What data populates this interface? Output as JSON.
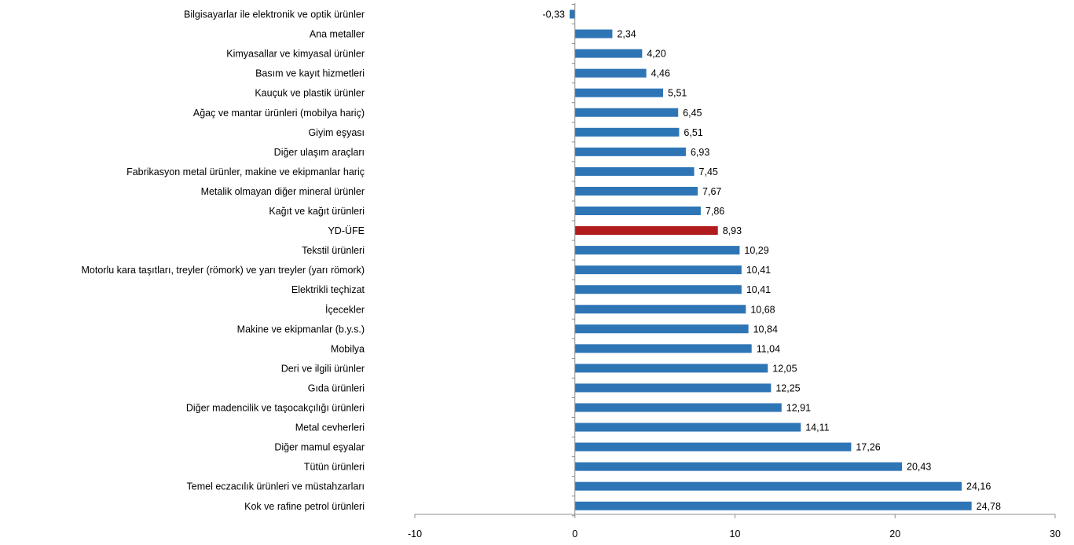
{
  "chart_data": {
    "type": "bar",
    "orientation": "horizontal",
    "title": "",
    "xlabel": "",
    "ylabel": "",
    "xlim": [
      -10,
      30
    ],
    "ticks": [
      -10,
      0,
      10,
      20,
      30
    ],
    "tick_labels": [
      "-10",
      "0",
      "10",
      "20",
      "30"
    ],
    "grid": false,
    "legend": "none",
    "colors": {
      "default": "#2e75b6",
      "highlight": "#b01c1c"
    },
    "categories": [
      "Bilgisayarlar ile elektronik ve optik ürünler",
      "Ana metaller",
      "Kimyasallar ve kimyasal ürünler",
      "Basım ve kayıt hizmetleri",
      "Kauçuk ve plastik ürünler",
      "Ağaç ve mantar ürünleri (mobilya hariç)",
      "Giyim eşyası",
      "Diğer ulaşım araçları",
      "Fabrikasyon metal ürünler, makine ve ekipmanlar hariç",
      "Metalik olmayan diğer mineral ürünler",
      "Kağıt ve kağıt ürünleri",
      "YD-ÜFE",
      "Tekstil ürünleri",
      "Motorlu kara taşıtları, treyler (römork) ve yarı treyler (yarı römork)",
      "Elektrikli teçhizat",
      "İçecekler",
      "Makine ve ekipmanlar (b.y.s.)",
      "Mobilya",
      "Deri ve ilgili ürünler",
      "Gıda ürünleri",
      "Diğer madencilik ve taşocakçılığı ürünleri",
      "Metal cevherleri",
      "Diğer mamul eşyalar",
      "Tütün ürünleri",
      "Temel eczacılık ürünleri ve müstahzarları",
      "Kok ve rafine petrol ürünleri"
    ],
    "values": [
      -0.33,
      2.34,
      4.2,
      4.46,
      5.51,
      6.45,
      6.51,
      6.93,
      7.45,
      7.67,
      7.86,
      8.93,
      10.29,
      10.41,
      10.41,
      10.68,
      10.84,
      11.04,
      12.05,
      12.25,
      12.91,
      14.11,
      17.26,
      20.43,
      24.16,
      24.78
    ],
    "value_labels": [
      "-0,33",
      "2,34",
      "4,20",
      "4,46",
      "5,51",
      "6,45",
      "6,51",
      "6,93",
      "7,45",
      "7,67",
      "7,86",
      "8,93",
      "10,29",
      "10,41",
      "10,41",
      "10,68",
      "10,84",
      "11,04",
      "12,05",
      "12,25",
      "12,91",
      "14,11",
      "17,26",
      "20,43",
      "24,16",
      "24,78"
    ],
    "highlight_category": "YD-ÜFE"
  }
}
